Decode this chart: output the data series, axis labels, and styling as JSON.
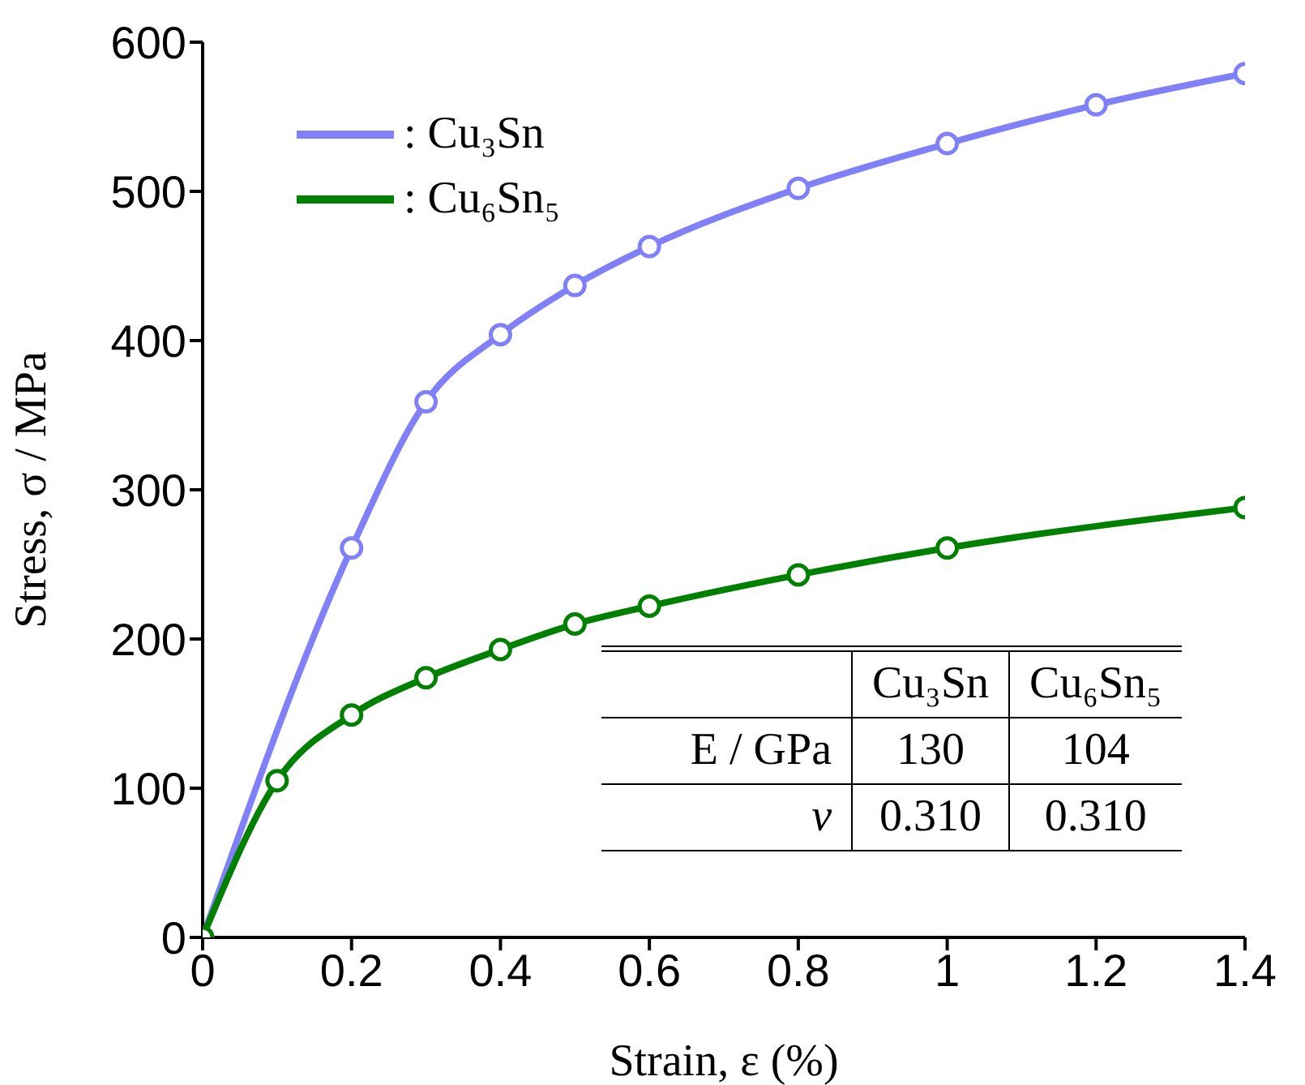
{
  "chart_data": {
    "type": "line",
    "xlabel": "Strain, ε (%)",
    "ylabel": "Stress, σ / MPa",
    "xlim": [
      0,
      1.4
    ],
    "xticks": [
      0,
      0.2,
      0.4,
      0.6,
      0.8,
      1,
      1.2,
      1.4
    ],
    "ylim": [
      0,
      600
    ],
    "yticks": [
      0,
      100,
      200,
      300,
      400,
      500,
      600
    ],
    "series": [
      {
        "name": ": Cu₃Sn",
        "color": "#8080f8",
        "x": [
          0,
          0.2,
          0.3,
          0.4,
          0.5,
          0.6,
          0.8,
          1,
          1.2,
          1.4
        ],
        "values": [
          0,
          261,
          359,
          404,
          437,
          463,
          502,
          532,
          558,
          579
        ]
      },
      {
        "name": ": Cu₆Sn₅",
        "color": "#008000",
        "x": [
          0,
          0.1,
          0.2,
          0.3,
          0.4,
          0.5,
          0.6,
          0.8,
          1,
          1.4
        ],
        "values": [
          0,
          105,
          149,
          174,
          193,
          210,
          222,
          243,
          261,
          288
        ]
      }
    ],
    "marker": "circle",
    "line_style": "solid",
    "legend": "top left",
    "annotations": [
      "Cu₃Sn",
      "Cu₆Sn₅",
      "E / GPa",
      "130",
      "104",
      "ν",
      "0.310",
      "0.310"
    ]
  }
}
